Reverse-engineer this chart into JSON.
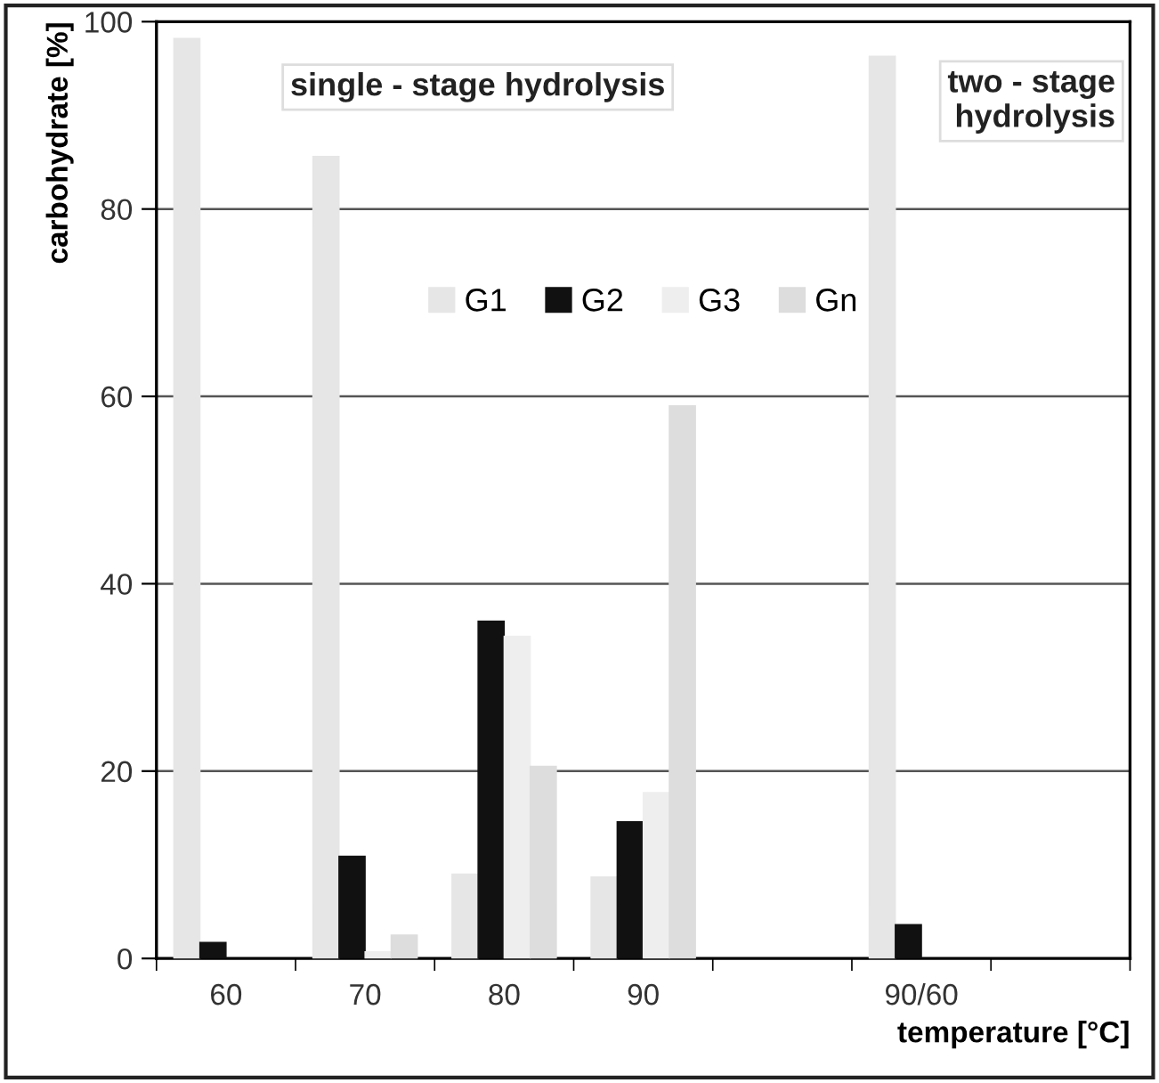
{
  "chart_data": {
    "type": "bar",
    "xlabel": "temperature [°C]",
    "ylabel": "carbohydrate [%]",
    "categories": [
      "60",
      "70",
      "80",
      "90",
      null,
      "90/60",
      null
    ],
    "series": [
      {
        "name": "G1",
        "color": "#e6e6e6",
        "values": [
          98.2,
          85.6,
          9.0,
          8.7,
          null,
          96.3,
          null
        ]
      },
      {
        "name": "G2",
        "color": "#111111",
        "values": [
          1.7,
          10.9,
          36.0,
          14.6,
          null,
          3.6,
          null
        ]
      },
      {
        "name": "G3",
        "color": "#eeeeee",
        "values": [
          null,
          0.7,
          34.4,
          17.7,
          null,
          null,
          null
        ]
      },
      {
        "name": "Gn",
        "color": "#dddddd",
        "values": [
          null,
          2.5,
          20.5,
          59.0,
          null,
          null,
          null
        ]
      }
    ],
    "ylim": [
      0,
      100
    ],
    "yticks": [
      0,
      20,
      40,
      60,
      80,
      100
    ],
    "grid": "y",
    "legend": "top",
    "annotations": [
      "single - stage hydrolysis",
      "two - stage\nhydrolysis"
    ]
  }
}
